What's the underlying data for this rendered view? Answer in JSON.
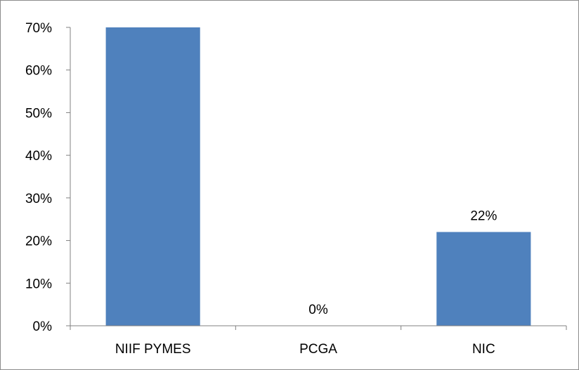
{
  "chart_data": {
    "type": "bar",
    "categories": [
      "NIIF PYMES",
      "PCGA",
      "NIC"
    ],
    "values": [
      70,
      0,
      22
    ],
    "data_labels": [
      "",
      "0%",
      "22%"
    ],
    "ylim": [
      0,
      70
    ],
    "yticks": [
      0,
      10,
      20,
      30,
      40,
      50,
      60,
      70
    ],
    "ytick_labels": [
      "0%",
      "10%",
      "20%",
      "30%",
      "40%",
      "50%",
      "60%",
      "70%"
    ],
    "bar_color": "#4f81bd",
    "axis_color": "#808080",
    "grid": false,
    "legend": "none"
  }
}
